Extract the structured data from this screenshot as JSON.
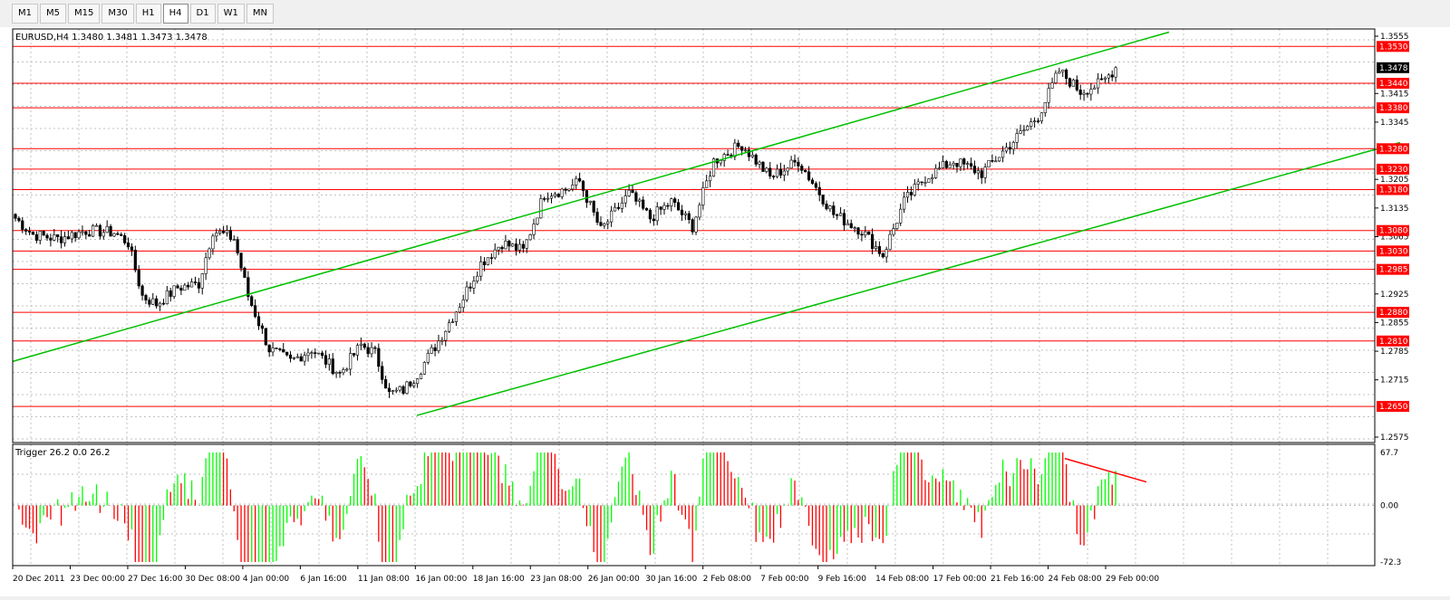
{
  "toolbar": {
    "timeframes": [
      {
        "label": "M1",
        "active": false
      },
      {
        "label": "M5",
        "active": false
      },
      {
        "label": "M15",
        "active": false
      },
      {
        "label": "M30",
        "active": false
      },
      {
        "label": "H1",
        "active": false
      },
      {
        "label": "H4",
        "active": true
      },
      {
        "label": "D1",
        "active": false
      },
      {
        "label": "W1",
        "active": false
      },
      {
        "label": "MN",
        "active": false
      }
    ]
  },
  "chart": {
    "symbol_info": "EURUSD,H4  1.3480 1.3481 1.3473 1.3478",
    "current_price_label": "1.3478",
    "price_scale": [
      "1.3555",
      "1.3415",
      "1.3345",
      "1.3205",
      "1.3135",
      "1.3065",
      "1.2925",
      "1.2855",
      "1.2785",
      "1.2715",
      "1.2575"
    ],
    "horizontal_levels": [
      "1.3530",
      "1.3440",
      "1.3380",
      "1.3280",
      "1.3230",
      "1.3180",
      "1.3080",
      "1.3030",
      "1.2985",
      "1.2880",
      "1.2810",
      "1.2650"
    ],
    "time_labels": [
      "20 Dec 2011",
      "23 Dec 00:00",
      "27 Dec 16:00",
      "30 Dec 08:00",
      "4 Jan 00:00",
      "6 Jan 16:00",
      "11 Jan 08:00",
      "16 Jan 00:00",
      "18 Jan 16:00",
      "23 Jan 08:00",
      "26 Jan 00:00",
      "30 Jan 16:00",
      "2 Feb 08:00",
      "7 Feb 00:00",
      "9 Feb 16:00",
      "14 Feb 08:00",
      "17 Feb 00:00",
      "21 Feb 16:00",
      "24 Feb 08:00",
      "29 Feb 00:00"
    ],
    "colors": {
      "level": "#ff0000",
      "channel": "#00c000",
      "bull": "#00c000",
      "bear": "#000000",
      "hist_up": "#00ff00",
      "hist_down": "#ff0000"
    }
  },
  "indicator": {
    "label": "Trigger 26.2 0.0 26.2",
    "scale": [
      "67.7",
      "0.00",
      "-72.3"
    ]
  },
  "chart_data": {
    "type": "candlestick",
    "ylim": [
      1.2575,
      1.3555
    ],
    "close_series_anchors": [
      [
        0,
        1.311
      ],
      [
        5,
        1.307
      ],
      [
        12,
        1.306
      ],
      [
        20,
        1.308
      ],
      [
        28,
        1.3075
      ],
      [
        32,
        1.305
      ],
      [
        36,
        1.292
      ],
      [
        40,
        1.29
      ],
      [
        46,
        1.294
      ],
      [
        52,
        1.295
      ],
      [
        56,
        1.308
      ],
      [
        62,
        1.306
      ],
      [
        66,
        1.292
      ],
      [
        72,
        1.279
      ],
      [
        78,
        1.276
      ],
      [
        84,
        1.279
      ],
      [
        92,
        1.273
      ],
      [
        98,
        1.28
      ],
      [
        102,
        1.278
      ],
      [
        106,
        1.268
      ],
      [
        110,
        1.269
      ],
      [
        114,
        1.273
      ],
      [
        120,
        1.281
      ],
      [
        126,
        1.29
      ],
      [
        132,
        1.3
      ],
      [
        138,
        1.305
      ],
      [
        144,
        1.303
      ],
      [
        150,
        1.317
      ],
      [
        156,
        1.318
      ],
      [
        160,
        1.32
      ],
      [
        166,
        1.308
      ],
      [
        174,
        1.317
      ],
      [
        180,
        1.311
      ],
      [
        186,
        1.315
      ],
      [
        192,
        1.309
      ],
      [
        198,
        1.325
      ],
      [
        206,
        1.329
      ],
      [
        214,
        1.321
      ],
      [
        222,
        1.325
      ],
      [
        232,
        1.312
      ],
      [
        240,
        1.308
      ],
      [
        246,
        1.302
      ],
      [
        252,
        1.315
      ],
      [
        258,
        1.321
      ],
      [
        266,
        1.325
      ],
      [
        274,
        1.322
      ],
      [
        282,
        1.329
      ],
      [
        290,
        1.336
      ],
      [
        296,
        1.347
      ],
      [
        302,
        1.342
      ],
      [
        308,
        1.344
      ],
      [
        312,
        1.3478
      ]
    ],
    "trigger_ylim": [
      -72.3,
      67.7
    ]
  }
}
